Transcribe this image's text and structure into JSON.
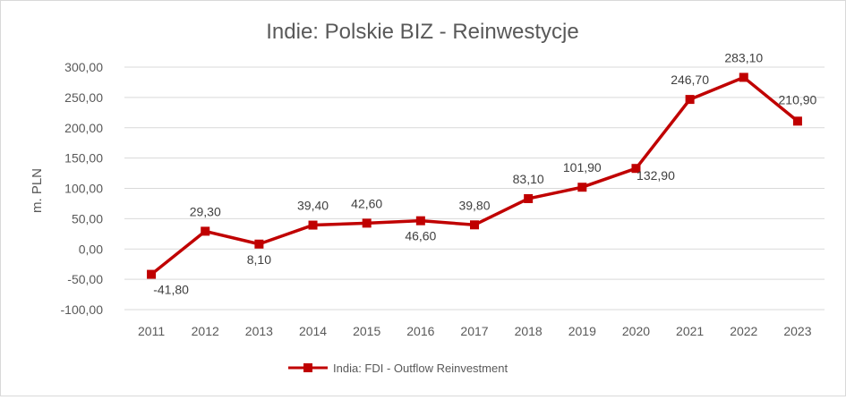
{
  "chart_data": {
    "type": "line",
    "title": "Indie: Polskie BIZ - Reinwestycje",
    "xlabel": "",
    "ylabel": "m. PLN",
    "ylim": [
      -100,
      300
    ],
    "yticks": [
      -100,
      -50,
      0,
      50,
      100,
      150,
      200,
      250,
      300
    ],
    "ytick_labels": [
      "-100,00",
      "-50,00",
      "0,00",
      "50,00",
      "100,00",
      "150,00",
      "200,00",
      "250,00",
      "300,00"
    ],
    "grid": true,
    "legend_position": "bottom",
    "categories": [
      "2011",
      "2012",
      "2013",
      "2014",
      "2015",
      "2016",
      "2017",
      "2018",
      "2019",
      "2020",
      "2021",
      "2022",
      "2023"
    ],
    "series": [
      {
        "name": "India: FDI - Outflow Reinvestment",
        "color": "#c00000",
        "values": [
          -41.8,
          29.3,
          8.1,
          39.4,
          42.6,
          46.6,
          39.8,
          83.1,
          101.9,
          132.9,
          246.7,
          283.1,
          210.9
        ],
        "labels": [
          "-41,80",
          "29,30",
          "8,10",
          "39,40",
          "42,60",
          "46,60",
          "39,80",
          "83,10",
          "101,90",
          "132,90",
          "246,70",
          "283,10",
          "210,90"
        ]
      }
    ]
  }
}
